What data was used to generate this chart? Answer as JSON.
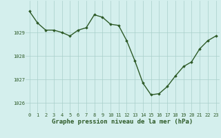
{
  "x": [
    0,
    1,
    2,
    3,
    4,
    5,
    6,
    7,
    8,
    9,
    10,
    11,
    12,
    13,
    14,
    15,
    16,
    17,
    18,
    19,
    20,
    21,
    22,
    23
  ],
  "y": [
    1029.9,
    1029.4,
    1029.1,
    1029.1,
    1029.0,
    1028.85,
    1029.1,
    1029.2,
    1029.75,
    1029.65,
    1029.35,
    1029.3,
    1028.65,
    1027.8,
    1026.85,
    1026.35,
    1026.4,
    1026.7,
    1027.15,
    1027.55,
    1027.75,
    1028.3,
    1028.65,
    1028.85
  ],
  "line_color": "#2d5a27",
  "marker": "D",
  "marker_size": 1.8,
  "line_width": 1.0,
  "bg_color": "#d4efed",
  "grid_color": "#a8ceca",
  "xlabel": "Graphe pression niveau de la mer (hPa)",
  "xlabel_fontsize": 6.5,
  "xlabel_color": "#2d5a27",
  "tick_fontsize": 5.0,
  "tick_color": "#2d5a27",
  "yticks": [
    1026,
    1027,
    1028,
    1029
  ],
  "xtick_labels": [
    "0",
    "1",
    "2",
    "3",
    "4",
    "5",
    "6",
    "7",
    "8",
    "9",
    "10",
    "11",
    "12",
    "13",
    "14",
    "15",
    "16",
    "17",
    "18",
    "19",
    "20",
    "21",
    "22",
    "23"
  ],
  "ylim": [
    1025.6,
    1030.35
  ],
  "xlim": [
    -0.5,
    23.5
  ]
}
